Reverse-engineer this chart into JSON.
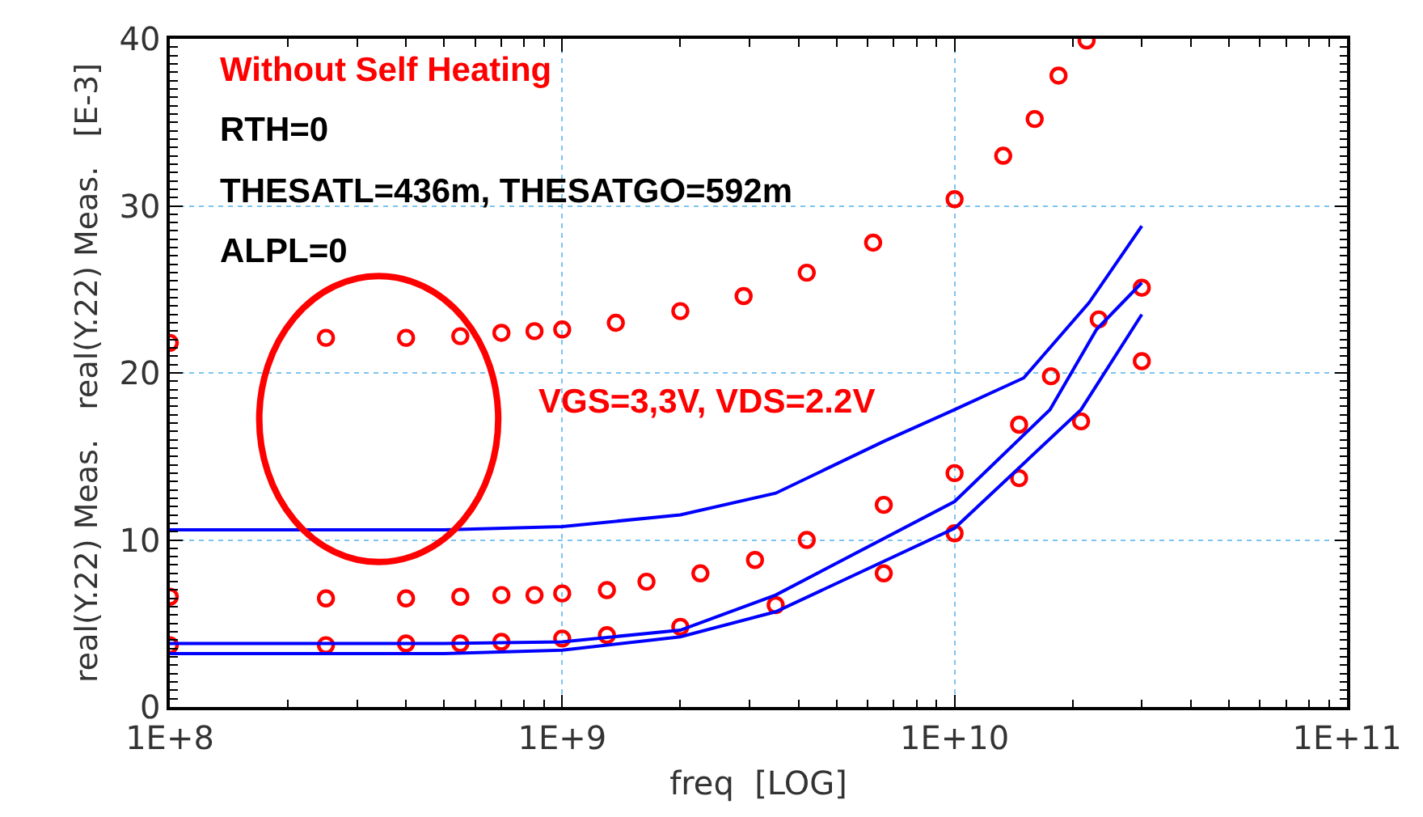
{
  "chart_data": {
    "type": "scatter",
    "xlabel": "freq  [LOG]",
    "ylabel": "real(Y.22) Meas.   real(Y.22) Meas.   [E-3]",
    "log": "x",
    "xlim": [
      100000000.0,
      100000000000.0
    ],
    "ylim": [
      0,
      40
    ],
    "xticks": [
      {
        "value": 100000000.0,
        "label": "1E+8"
      },
      {
        "value": 1000000000.0,
        "label": "1E+9"
      },
      {
        "value": 10000000000.0,
        "label": "1E+10"
      },
      {
        "value": 100000000000.0,
        "label": "1E+11"
      }
    ],
    "yticks": [
      0,
      10,
      20,
      30,
      40
    ],
    "grid": true,
    "annotations": [
      "Without Self Heating",
      "RTH=0",
      "THESATL=436m, THESATGO=592m",
      "ALPL=0",
      "VGS=3,3V, VDS=2.2V"
    ],
    "series": [
      {
        "marker": "circle",
        "color": "#ff0000",
        "x": [
          100000000.0,
          250000000.0,
          400000000.0,
          550000000.0,
          700000000.0,
          850000000.0,
          1000000000.0,
          1370000000.0,
          2000000000.0,
          2900000000.0,
          4200000000.0,
          6200000000.0,
          10000000000.0,
          13300000000.0,
          16000000000.0,
          18400000000.0,
          21700000000.0
        ],
        "values": [
          21.8,
          22.1,
          22.1,
          22.2,
          22.4,
          22.5,
          22.6,
          23.0,
          23.7,
          24.6,
          26.0,
          27.8,
          30.4,
          33.0,
          35.2,
          37.8,
          39.9
        ]
      },
      {
        "marker": "circle",
        "color": "#ff0000",
        "x": [
          100000000.0,
          250000000.0,
          400000000.0,
          550000000.0,
          700000000.0,
          850000000.0,
          1000000000.0,
          1300000000.0,
          1640000000.0,
          2250000000.0,
          3100000000.0,
          4200000000.0,
          6600000000.0,
          10000000000.0,
          14600000000.0,
          17600000000.0,
          23300000000.0,
          30000000000.0
        ],
        "values": [
          6.6,
          6.5,
          6.5,
          6.6,
          6.7,
          6.7,
          6.8,
          7.0,
          7.5,
          8.0,
          8.8,
          10.0,
          12.1,
          14.0,
          16.9,
          19.8,
          23.2,
          25.1
        ]
      },
      {
        "marker": "circle",
        "color": "#ff0000",
        "x": [
          100000000.0,
          250000000.0,
          400000000.0,
          550000000.0,
          700000000.0,
          1000000000.0,
          1300000000.0,
          2000000000.0,
          3500000000.0,
          6600000000.0,
          10000000000.0,
          14600000000.0,
          21000000000.0,
          30000000000.0
        ],
        "values": [
          3.7,
          3.7,
          3.8,
          3.8,
          3.9,
          4.1,
          4.3,
          4.8,
          6.1,
          8.0,
          10.4,
          13.7,
          17.1,
          20.7
        ]
      },
      {
        "type": "line",
        "marker": "none",
        "color": "#0000ff",
        "x": [
          100000000.0,
          500000000.0,
          1000000000.0,
          2000000000.0,
          3500000000.0,
          6600000000.0,
          10000000000.0,
          15000000000.0,
          22000000000.0,
          30000000000.0
        ],
        "values": [
          10.6,
          10.6,
          10.8,
          11.5,
          12.8,
          15.9,
          17.8,
          19.7,
          24.2,
          28.8
        ]
      },
      {
        "type": "line",
        "marker": "none",
        "color": "#0000ff",
        "x": [
          100000000.0,
          500000000.0,
          1000000000.0,
          2000000000.0,
          3500000000.0,
          10000000000.0,
          17500000000.0,
          23000000000.0,
          30000000000.0
        ],
        "values": [
          3.8,
          3.8,
          3.9,
          4.6,
          6.7,
          12.3,
          17.8,
          22.6,
          25.4
        ]
      },
      {
        "type": "line",
        "marker": "none",
        "color": "#0000ff",
        "x": [
          100000000.0,
          500000000.0,
          1000000000.0,
          2000000000.0,
          3500000000.0,
          10000000000.0,
          21000000000.0,
          30000000000.0
        ],
        "values": [
          3.2,
          3.2,
          3.4,
          4.2,
          5.7,
          10.7,
          17.8,
          23.5
        ]
      }
    ]
  }
}
